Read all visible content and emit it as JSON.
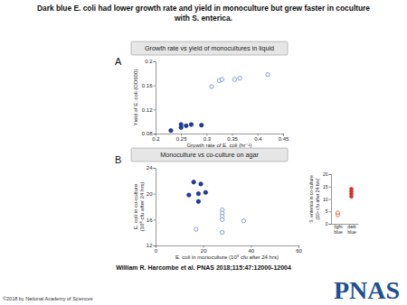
{
  "title": [
    "Dark blue E. coli had lower growth rate and yield in monoculture but grew faster in coculture",
    "with S. enterica."
  ],
  "citation": "William R. Harcombe et al. PNAS 2018;115:47:12000-12004",
  "copyright": "©2018 by National Academy of Sciences",
  "logo": "PNAS",
  "chart_data": [
    {
      "type": "scatter",
      "annotation": "A",
      "title": "Growth rate vs yield of monocultures in liquid",
      "xlabel": [
        "Growth rate of E. coli (hr⁻¹)"
      ],
      "ylabel": [
        "Yield of E. coli (OD600)"
      ],
      "xlim": [
        0.2,
        0.45
      ],
      "xticks": [
        0.2,
        0.25,
        0.3,
        0.35,
        0.4,
        0.45
      ],
      "ylim": [
        0.08,
        0.2
      ],
      "yticks": [
        0.08,
        0.12,
        0.16,
        0.2
      ],
      "series": [
        {
          "color": "#1f3a93",
          "marker": "circle",
          "x": [
            0.23,
            0.25,
            0.25,
            0.26,
            0.27,
            0.29
          ],
          "values": [
            0.085,
            0.09,
            0.095,
            0.093,
            0.095,
            0.094
          ]
        },
        {
          "color": "#6f86cf",
          "marker": "circle-open",
          "x": [
            0.31,
            0.325,
            0.33,
            0.355,
            0.365,
            0.42
          ],
          "values": [
            0.158,
            0.168,
            0.17,
            0.17,
            0.172,
            0.178
          ]
        }
      ]
    },
    {
      "type": "scatter",
      "annotation": "B",
      "title": "Monoculture vs co-culture on agar",
      "xlabel": [
        "E. coli in monoculture (10⁸ cfu after 24 hrs)"
      ],
      "ylabel": [
        "E. coli in co-culture",
        "(10⁸ cfu after 24 hrs)"
      ],
      "xlim": [
        0,
        60
      ],
      "xticks": [
        0,
        20,
        40,
        60
      ],
      "ylim": [
        12,
        24
      ],
      "yticks": [
        12,
        16,
        20,
        24
      ],
      "series": [
        {
          "color": "#1f3a93",
          "marker": "circle",
          "x": [
            14,
            16,
            18,
            18,
            19,
            21
          ],
          "values": [
            19.8,
            21.8,
            20,
            18.8,
            21.5,
            20.2
          ]
        },
        {
          "color": "#6f86cf",
          "marker": "circle-open",
          "x": [
            17,
            28,
            28,
            28,
            28,
            28,
            37
          ],
          "values": [
            14.5,
            17.5,
            17,
            16.5,
            16,
            14,
            15.8
          ]
        }
      ]
    },
    {
      "type": "strip",
      "ylabel": [
        "S. enterica in co-culture",
        "(10⁸ cfu after 24 hrs)"
      ],
      "categories": [
        "light blue",
        "dark blue"
      ],
      "ylim": [
        0,
        20
      ],
      "yticks": [
        0,
        5,
        10,
        15,
        20
      ],
      "series": [
        {
          "color": "#e0563f",
          "marker": "circle-open",
          "x": [
            "light blue",
            "light blue",
            "light blue"
          ],
          "values": [
            4,
            3.5,
            4.5
          ]
        },
        {
          "color": "#d9302a",
          "marker": "circle",
          "x": [
            "dark blue",
            "dark blue",
            "dark blue",
            "dark blue"
          ],
          "values": [
            11,
            12,
            13,
            14
          ]
        }
      ]
    }
  ]
}
